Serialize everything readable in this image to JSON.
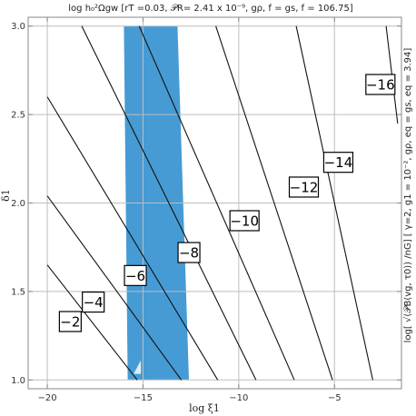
{
  "chart_data": {
    "type": "contour",
    "title": "log h₀²Ωgw [rT =0.03, 𝒫R= 2.41 x 10⁻⁹, gρ, f = gs, f = 106.75]",
    "xlabel": "log ξ1",
    "ylabel": "δ1",
    "right_label": "log[ √(𝒫B(vg, τ0)) /nG] [ γ=2, g1 = 10⁻², gρ, eq = gs, eq = 3.94]",
    "xlim": [
      -21,
      -1.5
    ],
    "ylim": [
      0.95,
      3.05
    ],
    "x_ticks": [
      -20,
      -15,
      -10,
      -5
    ],
    "x_tick_labels": [
      "−20",
      "−15",
      "−10",
      "−5"
    ],
    "y_ticks": [
      1.0,
      1.5,
      2.0,
      2.5,
      3.0
    ],
    "y_tick_labels": [
      "1.0",
      "1.5",
      "2.0",
      "2.5",
      "3.0"
    ],
    "grid": true,
    "shaded_region": {
      "color": "#3c96d2",
      "bounds": [
        [
          -16.0,
          3.0
        ],
        [
          -13.2,
          3.0
        ],
        [
          -12.6,
          1.0
        ],
        [
          -15.8,
          1.0
        ]
      ]
    },
    "contours": [
      {
        "level": -2,
        "label": "−2",
        "points": [
          [
            -20.0,
            1.65
          ],
          [
            -15.3,
            1.0
          ]
        ],
        "label_at": [
          -18.8,
          1.33
        ]
      },
      {
        "level": -4,
        "label": "−4",
        "points": [
          [
            -20.0,
            2.04
          ],
          [
            -13.0,
            1.0
          ]
        ],
        "label_at": [
          -17.6,
          1.44
        ]
      },
      {
        "level": -6,
        "label": "−6",
        "points": [
          [
            -20.0,
            2.6
          ],
          [
            -11.1,
            1.0
          ]
        ],
        "label_at": [
          -15.4,
          1.59
        ]
      },
      {
        "level": -8,
        "label": "−8",
        "points": [
          [
            -18.2,
            3.0
          ],
          [
            -9.1,
            1.0
          ]
        ],
        "label_at": [
          -12.6,
          1.72
        ]
      },
      {
        "level": -10,
        "label": "−10",
        "points": [
          [
            -15.2,
            3.0
          ],
          [
            -7.1,
            1.0
          ]
        ],
        "label_at": [
          -9.7,
          1.9
        ]
      },
      {
        "level": -12,
        "label": "−12",
        "points": [
          [
            -11.2,
            3.0
          ],
          [
            -5.1,
            1.0
          ]
        ],
        "label_at": [
          -6.6,
          2.09
        ]
      },
      {
        "level": -14,
        "label": "−14",
        "points": [
          [
            -7.0,
            3.0
          ],
          [
            -3.0,
            1.0
          ]
        ],
        "label_at": [
          -4.8,
          2.23
        ]
      },
      {
        "level": -16,
        "label": "−16",
        "points": [
          [
            -2.3,
            3.0
          ],
          [
            -1.7,
            2.45
          ]
        ],
        "label_at": [
          -2.6,
          2.67
        ]
      }
    ]
  },
  "colors": {
    "axis": "#888888",
    "grid": "#bdbdbd",
    "contour": "#111111",
    "label_box": "#ffffff"
  }
}
